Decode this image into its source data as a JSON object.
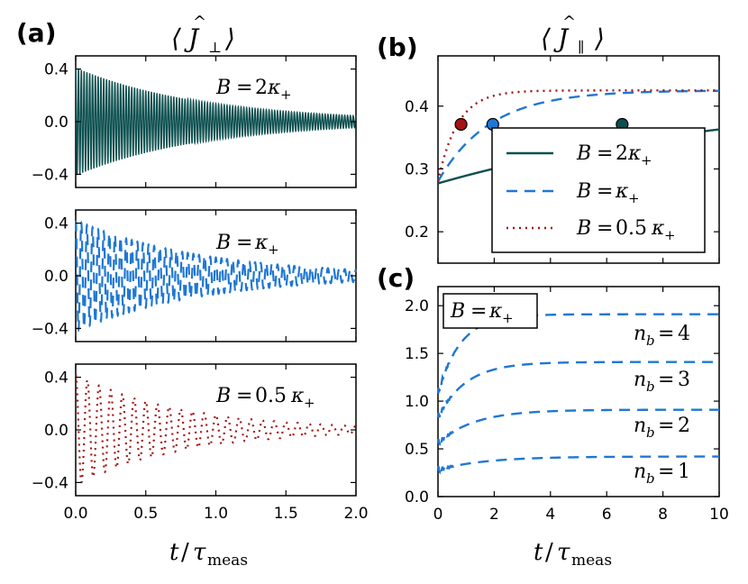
{
  "panel_labels": {
    "a": "(a)",
    "b": "(b)",
    "c": "(c)"
  },
  "colors": {
    "B2": "#0d4f4f",
    "B1": "#1f77d4",
    "B05": "#a31515"
  },
  "chart_data": [
    {
      "type": "line",
      "panel": "a",
      "title": "⟨Ĵ⊥⟩",
      "subplots": [
        {
          "name": "B2",
          "annotation": "B = 2κ₊",
          "style": "solid",
          "color": "#0d4f4f",
          "xlim": [
            0,
            2.0
          ],
          "ylim": [
            -0.5,
            0.5
          ],
          "yticks": [
            -0.4,
            0.0,
            0.4
          ],
          "amplitude": 0.41,
          "frequency": 50,
          "decay_rate": 1.1,
          "description": "damped oscillation, envelope ~0.41 to ~0.02 at t=2"
        },
        {
          "name": "B1",
          "annotation": "B = κ₊",
          "style": "dashed",
          "color": "#1f77d4",
          "xlim": [
            0,
            2.0
          ],
          "ylim": [
            -0.5,
            0.5
          ],
          "yticks": [
            -0.4,
            0.0,
            0.4
          ],
          "amplitude": 0.42,
          "frequency": 25,
          "decay_rate": 1.1
        },
        {
          "name": "B05",
          "annotation": "B = 0.5κ₊",
          "style": "dotted",
          "color": "#a31515",
          "xlim": [
            0,
            2.0
          ],
          "ylim": [
            -0.5,
            0.5
          ],
          "yticks": [
            -0.4,
            0.0,
            0.4
          ],
          "amplitude": 0.42,
          "frequency": 12,
          "decay_rate": 1.3
        }
      ],
      "xticks": [
        "0.0",
        "0.5",
        "1.0",
        "1.5",
        "2.0"
      ],
      "ytick_labels": [
        "0.4",
        "0.0",
        "−0.4"
      ],
      "xlabel": "t/τmeas"
    },
    {
      "type": "line",
      "panel": "b",
      "title": "⟨Ĵ∥⟩",
      "xlim": [
        0,
        10
      ],
      "ylim": [
        0.15,
        0.48
      ],
      "yticks": [
        0.2,
        0.3,
        0.4
      ],
      "ytick_labels": [
        "0.2",
        "0.3",
        "0.4"
      ],
      "asymptote": 0.425,
      "series": [
        {
          "name": "B = 2κ₊",
          "style": "solid",
          "color": "#0d4f4f",
          "y0": 0.277,
          "tau": 11.5,
          "marker": {
            "x": 6.55,
            "y": 0.371
          }
        },
        {
          "name": "B = κ₊",
          "style": "dashed",
          "color": "#1f77d4",
          "y0": 0.28,
          "tau": 1.85,
          "marker": {
            "x": 1.95,
            "y": 0.371
          }
        },
        {
          "name": "B = 0.5κ₊",
          "style": "dotted",
          "color": "#a31515",
          "y0": 0.28,
          "tau": 0.7,
          "marker": {
            "x": 0.82,
            "y": 0.371
          }
        }
      ],
      "legend": [
        "B = 2κ₊",
        "B = κ₊",
        "B = 0.5κ₊"
      ],
      "legend_position": "lower-right"
    },
    {
      "type": "line",
      "panel": "c",
      "annotation": "B = κ₊",
      "xlim": [
        0,
        10
      ],
      "ylim": [
        0,
        2.2
      ],
      "xticks": [
        "0",
        "2",
        "4",
        "6",
        "8",
        "10"
      ],
      "yticks": [
        0.0,
        0.5,
        1.0,
        1.5,
        2.0
      ],
      "ytick_labels": [
        "2.0",
        "1.5",
        "1.0",
        "0.5",
        "0.0"
      ],
      "xlabel": "t/τmeas",
      "series": [
        {
          "name": "n_b = 4",
          "style": "dashed",
          "color": "#1f77d4",
          "y0": 1.08,
          "yinf": 1.91,
          "tau": 0.8
        },
        {
          "name": "n_b = 3",
          "style": "dashed",
          "color": "#1f77d4",
          "y0": 0.83,
          "yinf": 1.41,
          "tau": 1.0
        },
        {
          "name": "n_b = 2",
          "style": "dashed",
          "color": "#1f77d4",
          "y0": 0.56,
          "yinf": 0.91,
          "tau": 1.3
        },
        {
          "name": "n_b = 1",
          "style": "dashed",
          "color": "#1f77d4",
          "y0": 0.28,
          "yinf": 0.42,
          "tau": 1.7
        }
      ],
      "nb_labels": [
        "n_b = 4",
        "n_b = 3",
        "n_b = 2",
        "n_b = 1"
      ]
    }
  ]
}
